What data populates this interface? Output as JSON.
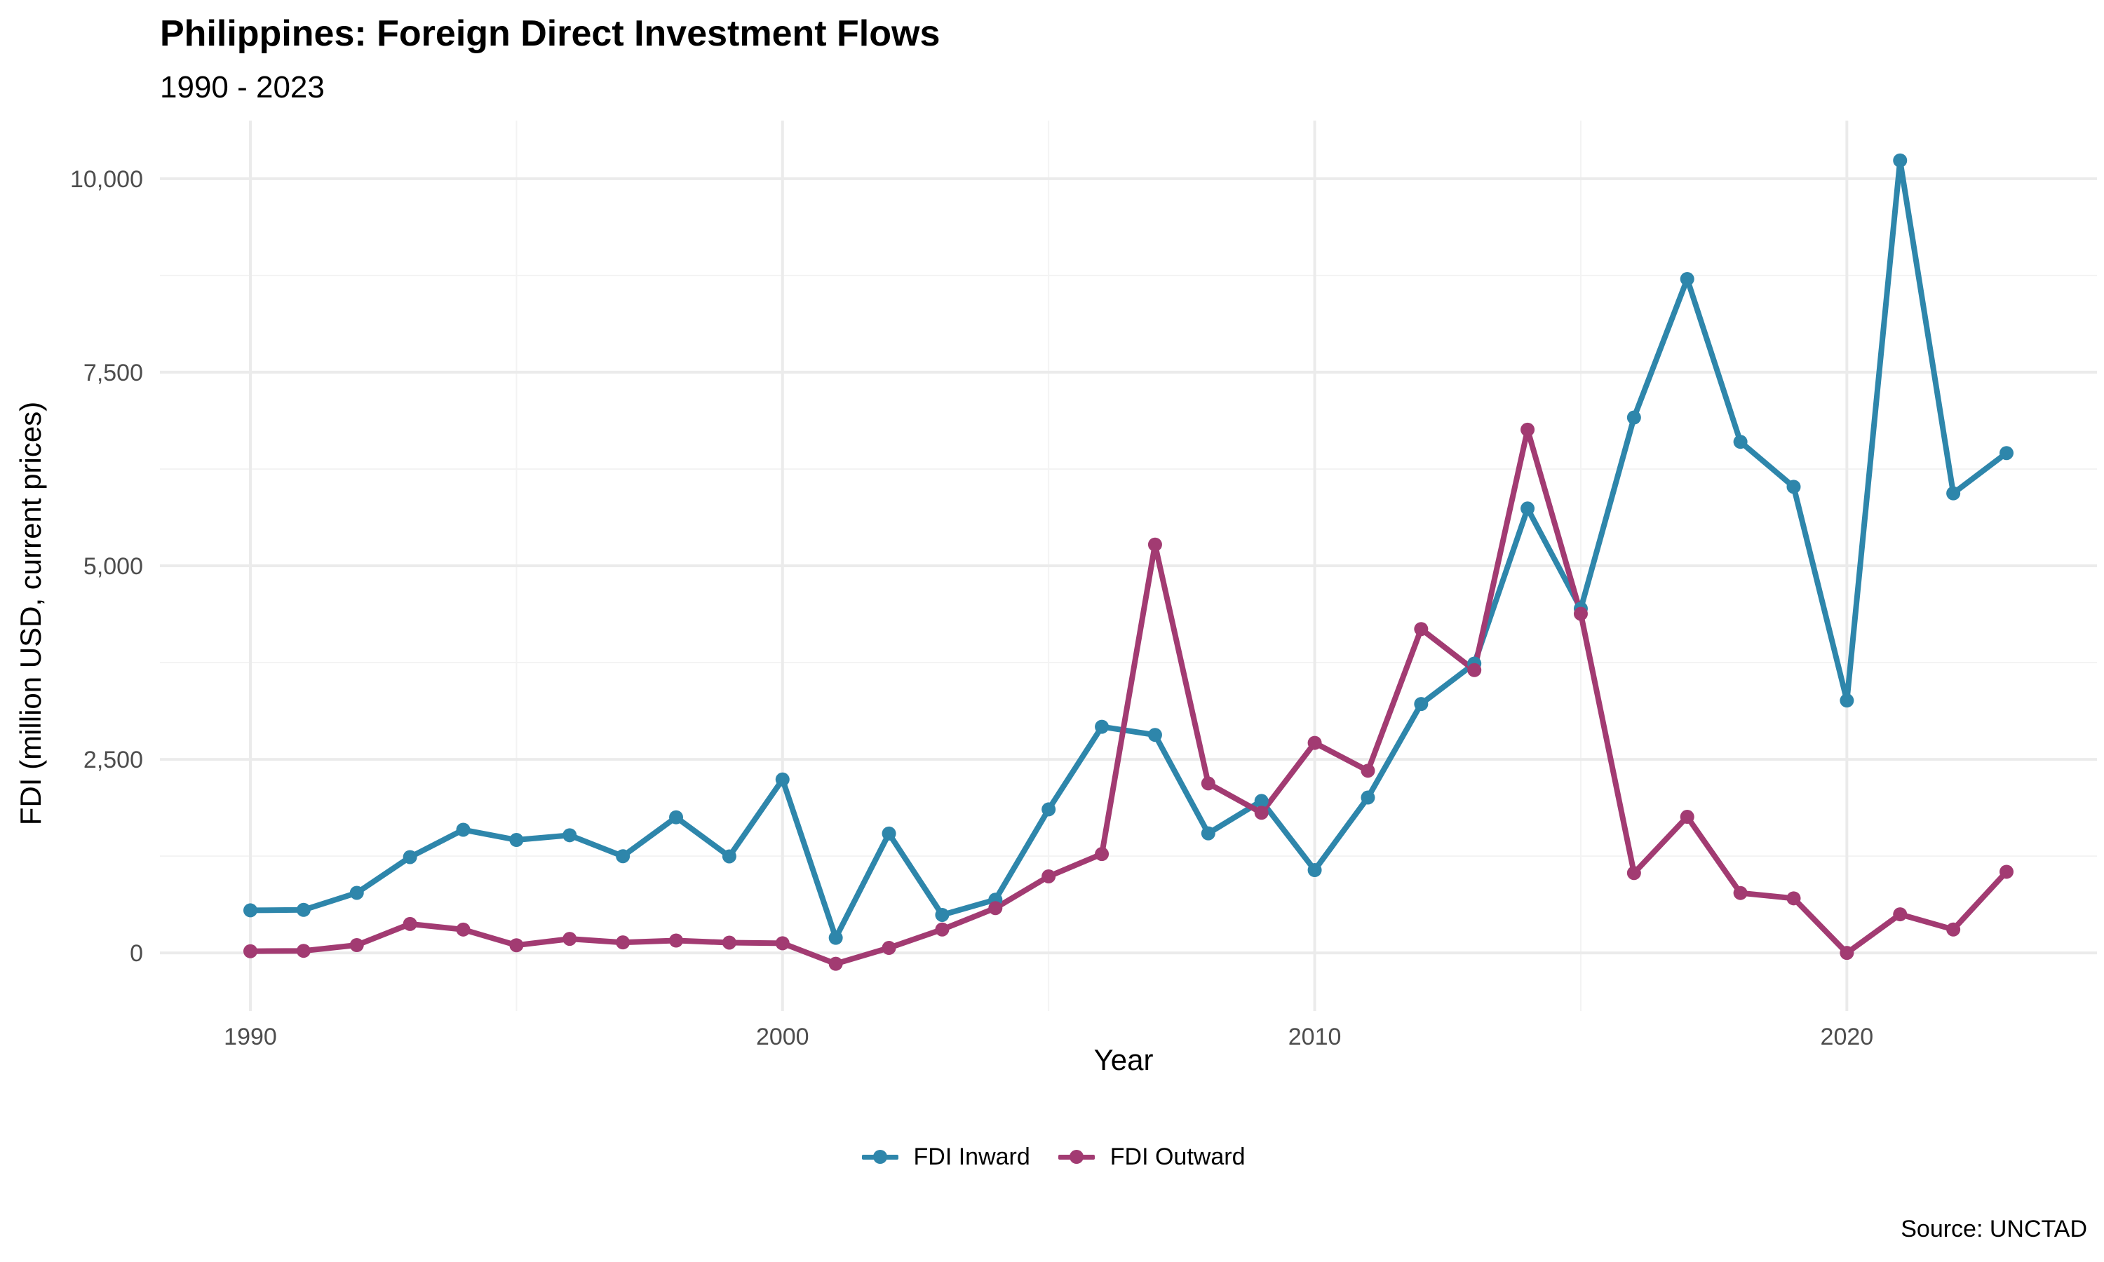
{
  "chart_data": {
    "type": "line",
    "title": "Philippines: Foreign Direct Investment Flows",
    "subtitle": "1990 - 2023",
    "xlabel": "Year",
    "ylabel": "FDI (million USD, current prices)",
    "caption": "Source: UNCTAD",
    "x": [
      1990,
      1991,
      1992,
      1993,
      1994,
      1995,
      1996,
      1997,
      1998,
      1999,
      2000,
      2001,
      2002,
      2003,
      2004,
      2005,
      2006,
      2007,
      2008,
      2009,
      2010,
      2011,
      2012,
      2013,
      2014,
      2015,
      2016,
      2017,
      2018,
      2019,
      2020,
      2021,
      2022,
      2023
    ],
    "xlim": [
      1988.3,
      2024.7
    ],
    "ylim": [
      -750,
      10750
    ],
    "x_ticks": [
      1990,
      2000,
      2010,
      2020
    ],
    "x_tick_labels": [
      "1990",
      "2000",
      "2010",
      "2020"
    ],
    "y_ticks": [
      0,
      2500,
      5000,
      7500,
      10000
    ],
    "y_tick_labels": [
      "0",
      "2,500",
      "5,000",
      "7,500",
      "10,000"
    ],
    "grid": true,
    "legend_position": "bottom",
    "series": [
      {
        "name": "FDI Inward",
        "color": "#2E86AB",
        "values": [
          550,
          556,
          776,
          1238,
          1591,
          1459,
          1520,
          1249,
          1752,
          1247,
          2240,
          195,
          1542,
          491,
          688,
          1854,
          2921,
          2816,
          1544,
          1963,
          1070,
          2007,
          3215,
          3737,
          5740,
          4447,
          6915,
          8704,
          6601,
          6020,
          3260,
          10235,
          5936,
          6456
        ]
      },
      {
        "name": "FDI Outward",
        "color": "#A23B72",
        "values": [
          22,
          27,
          101,
          374,
          302,
          99,
          182,
          136,
          160,
          133,
          125,
          -140,
          65,
          303,
          579,
          989,
          1277,
          5274,
          2189,
          1810,
          2713,
          2353,
          4183,
          3653,
          6758,
          4380,
          1032,
          1758,
          774,
          705,
          0,
          499,
          303,
          1048
        ]
      }
    ]
  }
}
